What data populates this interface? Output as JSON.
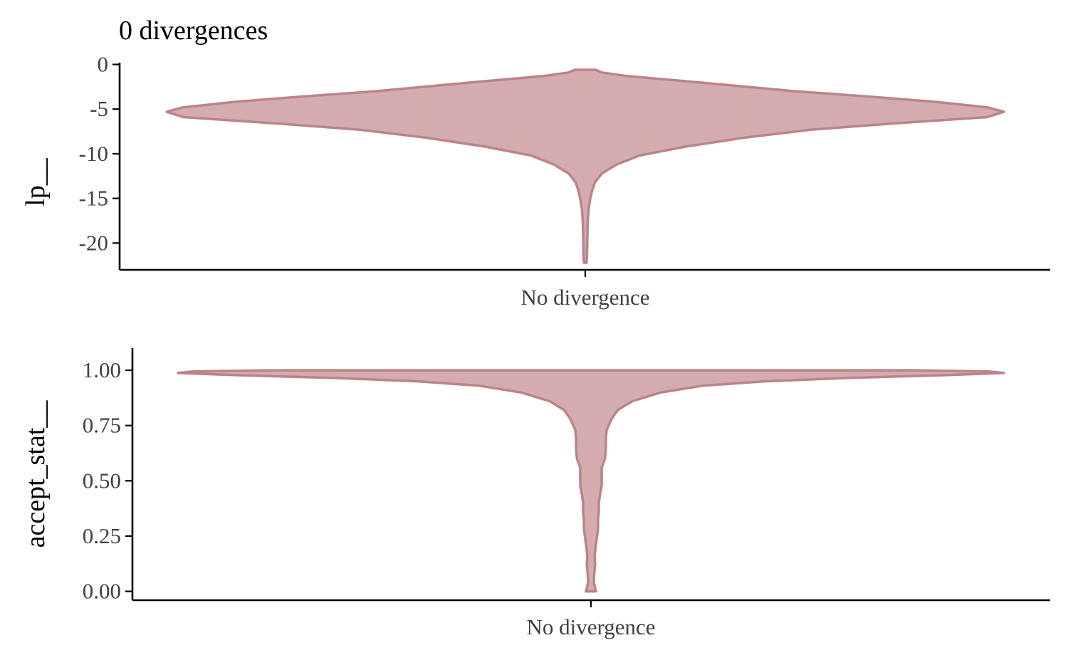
{
  "colors": {
    "fill": "#d4acaf",
    "stroke": "#bb8488",
    "axis": "#000000",
    "tick_label": "#404040"
  },
  "chart_data": [
    {
      "type": "violin",
      "title": "0 divergences",
      "ylabel": "lp__",
      "xlabel": "",
      "categories": [
        "No divergence"
      ],
      "ylim": [
        -23,
        0.2
      ],
      "yticks": [
        0,
        -5,
        -10,
        -15,
        -20
      ],
      "ytick_labels": [
        "0",
        "-5",
        "-10",
        "-15",
        "-20"
      ],
      "grid": false,
      "range": [
        -22.2,
        -0.6
      ],
      "density_profile": [
        {
          "y": -0.6,
          "w": 0.025
        },
        {
          "y": -0.9,
          "w": 0.04
        },
        {
          "y": -1.3,
          "w": 0.1
        },
        {
          "y": -2.0,
          "w": 0.27
        },
        {
          "y": -3.0,
          "w": 0.5
        },
        {
          "y": -3.6,
          "w": 0.68
        },
        {
          "y": -4.2,
          "w": 0.84
        },
        {
          "y": -4.8,
          "w": 0.96
        },
        {
          "y": -5.3,
          "w": 1.0
        },
        {
          "y": -5.9,
          "w": 0.96
        },
        {
          "y": -6.6,
          "w": 0.74
        },
        {
          "y": -7.3,
          "w": 0.54
        },
        {
          "y": -8.2,
          "w": 0.38
        },
        {
          "y": -9.2,
          "w": 0.24
        },
        {
          "y": -10.2,
          "w": 0.13
        },
        {
          "y": -11.2,
          "w": 0.075
        },
        {
          "y": -12.2,
          "w": 0.04
        },
        {
          "y": -13.2,
          "w": 0.023
        },
        {
          "y": -14.2,
          "w": 0.016
        },
        {
          "y": -15.0,
          "w": 0.012
        },
        {
          "y": -16.2,
          "w": 0.008
        },
        {
          "y": -17.5,
          "w": 0.006
        },
        {
          "y": -19.5,
          "w": 0.005
        },
        {
          "y": -21.5,
          "w": 0.004
        },
        {
          "y": -22.2,
          "w": 0.003
        }
      ]
    },
    {
      "type": "violin",
      "title": "",
      "ylabel": "accept_stat__",
      "xlabel": "",
      "categories": [
        "No divergence"
      ],
      "ylim": [
        -0.04,
        1.1
      ],
      "yticks": [
        1.0,
        0.75,
        0.5,
        0.25,
        0.0
      ],
      "ytick_labels": [
        "1.00",
        "0.75",
        "0.50",
        "0.25",
        "0.00"
      ],
      "grid": false,
      "range": [
        0.0,
        1.0
      ],
      "density_profile": [
        {
          "y": 1.0,
          "w": 0.78
        },
        {
          "y": 0.995,
          "w": 0.96
        },
        {
          "y": 0.988,
          "w": 1.0
        },
        {
          "y": 0.978,
          "w": 0.86
        },
        {
          "y": 0.965,
          "w": 0.62
        },
        {
          "y": 0.95,
          "w": 0.42
        },
        {
          "y": 0.93,
          "w": 0.27
        },
        {
          "y": 0.9,
          "w": 0.17
        },
        {
          "y": 0.86,
          "w": 0.1
        },
        {
          "y": 0.82,
          "w": 0.065
        },
        {
          "y": 0.78,
          "w": 0.05
        },
        {
          "y": 0.73,
          "w": 0.038
        },
        {
          "y": 0.69,
          "w": 0.036
        },
        {
          "y": 0.65,
          "w": 0.036
        },
        {
          "y": 0.6,
          "w": 0.034
        },
        {
          "y": 0.56,
          "w": 0.026
        },
        {
          "y": 0.52,
          "w": 0.026
        },
        {
          "y": 0.48,
          "w": 0.026
        },
        {
          "y": 0.44,
          "w": 0.022
        },
        {
          "y": 0.4,
          "w": 0.019
        },
        {
          "y": 0.36,
          "w": 0.019
        },
        {
          "y": 0.32,
          "w": 0.017
        },
        {
          "y": 0.28,
          "w": 0.017
        },
        {
          "y": 0.24,
          "w": 0.014
        },
        {
          "y": 0.2,
          "w": 0.011
        },
        {
          "y": 0.16,
          "w": 0.009
        },
        {
          "y": 0.12,
          "w": 0.01
        },
        {
          "y": 0.08,
          "w": 0.008
        },
        {
          "y": 0.04,
          "w": 0.007
        },
        {
          "y": 0.015,
          "w": 0.01
        },
        {
          "y": 0.0,
          "w": 0.012
        }
      ]
    }
  ]
}
